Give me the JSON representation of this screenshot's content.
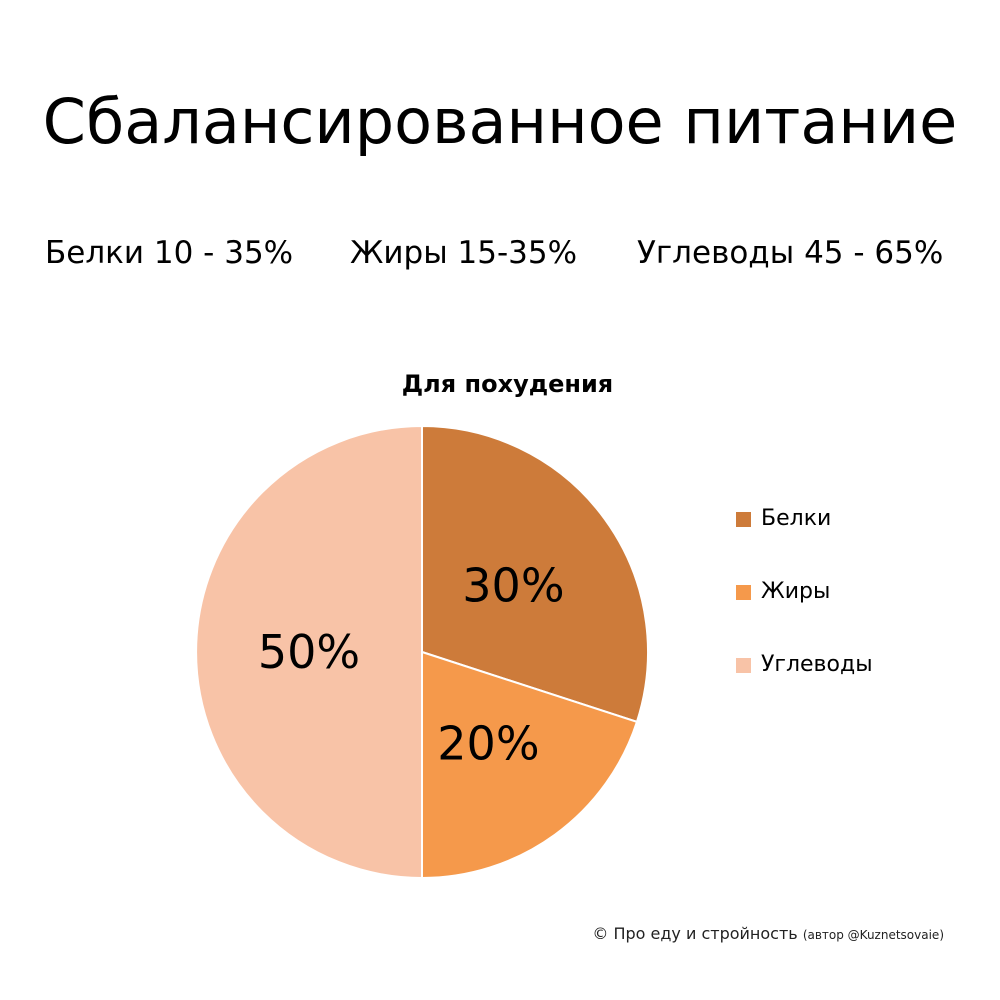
{
  "title": "Сбалансированное питание",
  "ranges": [
    "Белки 10 - 35%",
    "Жиры 15-35%",
    "Углеводы 45 - 65%"
  ],
  "chart_data": {
    "type": "pie",
    "title": "Для похудения",
    "categories": [
      "Белки",
      "Жиры",
      "Углеводы"
    ],
    "values": [
      30,
      20,
      50
    ],
    "labels": [
      "30%",
      "20%",
      "50%"
    ],
    "colors": [
      "#CD7B3A",
      "#F5994B",
      "#F8C3A7"
    ],
    "start_angle": "12 o'clock",
    "direction": "clockwise",
    "legend": "right"
  },
  "footer": {
    "main": "© Про еду и стройность",
    "credit": "(автор @Kuznetsovaie)"
  }
}
